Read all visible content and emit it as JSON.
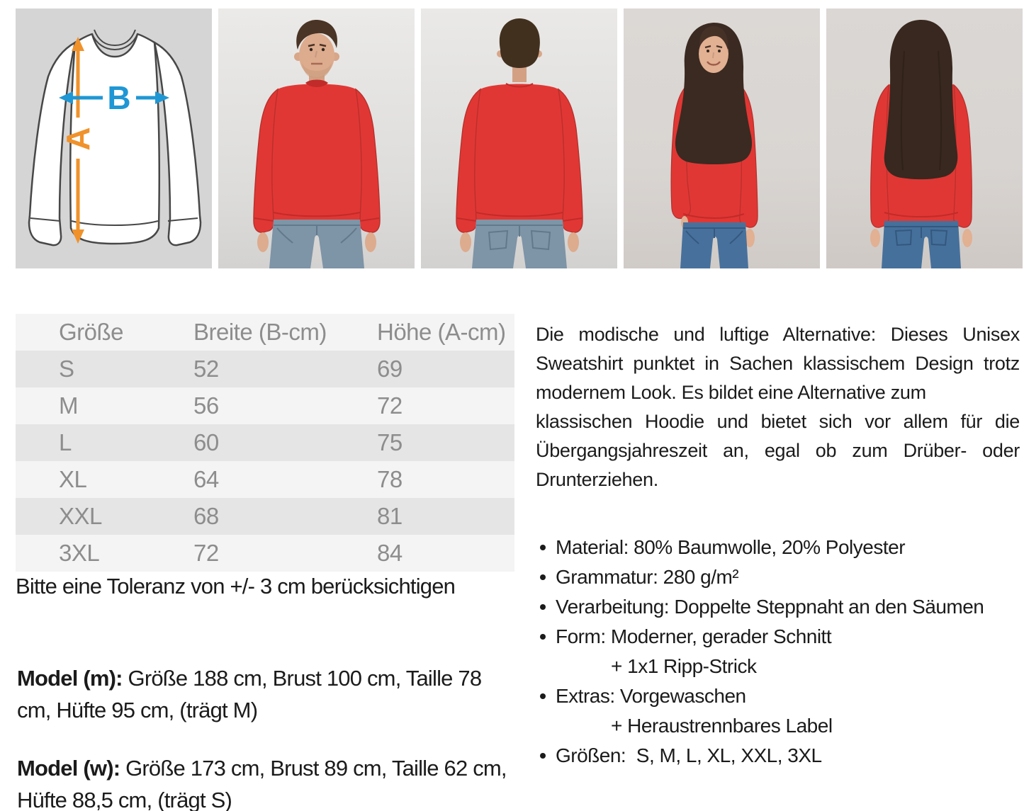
{
  "colors": {
    "sweatshirt_red": "#e13734",
    "arrow_a_orange": "#f0922b",
    "arrow_b_blue": "#1f97d4",
    "diagram_background": "#d5d5d5",
    "table_row_dark": "#e5e5e5",
    "table_row_light": "#f4f4f4",
    "table_text_gray": "#8d8d8d",
    "body_text": "#1b1b1b",
    "jeans_men": "#7e94a7",
    "jeans_women": "#47719c"
  },
  "size_diagram": {
    "label_a": "A",
    "label_b": "B"
  },
  "photo_labels": {
    "diagram": "sweatshirt-measure-diagram",
    "man_front": "man-front-photo",
    "man_back": "man-back-photo",
    "woman_front": "woman-front-photo",
    "woman_back": "woman-back-photo"
  },
  "size_table": {
    "headers": [
      "Größe",
      "Breite (B-cm)",
      "Höhe (A-cm)"
    ],
    "rows": [
      [
        "S",
        "52",
        "69"
      ],
      [
        "M",
        "56",
        "72"
      ],
      [
        "L",
        "60",
        "75"
      ],
      [
        "XL",
        "64",
        "78"
      ],
      [
        "XXL",
        "68",
        "81"
      ],
      [
        "3XL",
        "72",
        "84"
      ]
    ]
  },
  "tolerance_note": "Bitte eine Toleranz von +/- 3 cm berücksichtigen",
  "model_m": {
    "label": "Model (m):",
    "text": " Größe 188 cm, Brust 100 cm, Taille 78 cm, Hüfte 95 cm, (trägt M)"
  },
  "model_w": {
    "label": "Model (w):",
    "text": " Größe 173 cm, Brust 89 cm, Taille 62 cm, Hüfte 88,5 cm, (trägt S)"
  },
  "description": {
    "lines": [
      {
        "text": "Die modische und luftige Alternative: Dieses Unisex",
        "justify": true
      },
      {
        "text": "Sweatshirt punktet in Sachen klassischem Design trotz",
        "justify": true
      },
      {
        "text": "modernem Look. Es bildet eine Alternative zum",
        "justify": false
      },
      {
        "text": "klassischen Hoodie und bietet sich vor allem für die",
        "justify": true
      },
      {
        "text": "Übergangsjahreszeit an, egal ob zum Drüber- oder",
        "justify": true
      },
      {
        "text": "Drunterziehen.",
        "justify": false
      }
    ],
    "bullets": [
      {
        "text": "Material: 80% Baumwolle, 20% Polyester"
      },
      {
        "text": "Grammatur: 280 g/m²"
      },
      {
        "text": "Verarbeitung: Doppelte Steppnaht an den Säumen"
      },
      {
        "text": "Form: Moderner, gerader Schnitt",
        "cont": "+ 1x1 Ripp-Strick"
      },
      {
        "text": "Extras: Vorgewaschen",
        "cont": "+ Heraustrennbares Label"
      },
      {
        "text": "Größen:  S, M, L, XL, XXL, 3XL"
      }
    ]
  }
}
